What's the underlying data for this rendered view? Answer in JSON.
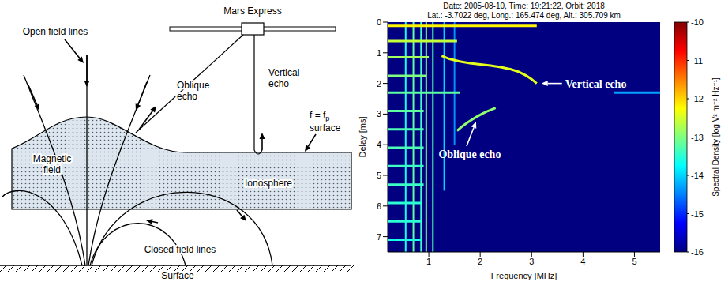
{
  "diagram": {
    "labels": {
      "spacecraft": "Mars Express",
      "open_field_lines": "Open field lines",
      "vertical_echo": "Vertical echo",
      "oblique_echo": "Oblique echo",
      "plasma_surface": {
        "text": "f = f",
        "subscript": "p",
        "suffix": "surface"
      },
      "magnetic_field": "Magnetic field",
      "ionosphere": "Ionosphere",
      "closed_field_lines": "Closed field lines",
      "surface": "Surface"
    }
  },
  "chart_data": {
    "type": "heatmap",
    "title": "Date: 2005-08-10, Time: 19:21:22, Orbit: 2018",
    "subtitle": "Lat.: -3.7022 deg, Long.: 165.474 deg, Alt.: 305.709 km",
    "x_label": "Frequency [MHz]",
    "y_label": "Delay [ms]",
    "xlim": [
      0.2,
      5.5
    ],
    "xticks": [
      1,
      2,
      3,
      4,
      5
    ],
    "ylim": [
      0,
      7.5
    ],
    "yticks": [
      0,
      1,
      2,
      3,
      4,
      5,
      6,
      7
    ],
    "colorbar": {
      "label": "Spectral Density [log V² m⁻² Hz⁻¹]",
      "range": [
        -16,
        -10
      ],
      "ticks": [
        -10,
        -11,
        -12,
        -13,
        -14,
        -15,
        -16
      ]
    },
    "background_value": -16,
    "horizontal_lines": [
      {
        "delay": 0.12,
        "from": 0.2,
        "to": 3.1,
        "value": -12.2
      },
      {
        "delay": 0.62,
        "from": 0.2,
        "to": 1.55,
        "value": -12.6
      },
      {
        "delay": 1.15,
        "from": 0.2,
        "to": 1.0,
        "value": -12.8
      },
      {
        "delay": 1.75,
        "from": 0.2,
        "to": 0.95,
        "value": -13.0
      },
      {
        "delay": 2.3,
        "from": 0.2,
        "to": 1.6,
        "value": -13.2
      },
      {
        "delay": 2.3,
        "from": 4.6,
        "to": 5.5,
        "value": -14.3
      },
      {
        "delay": 2.9,
        "from": 0.2,
        "to": 0.9,
        "value": -13.2
      },
      {
        "delay": 3.5,
        "from": 0.2,
        "to": 0.9,
        "value": -13.3
      },
      {
        "delay": 4.1,
        "from": 0.2,
        "to": 0.9,
        "value": -13.3
      },
      {
        "delay": 4.7,
        "from": 0.2,
        "to": 0.9,
        "value": -13.4
      },
      {
        "delay": 5.3,
        "from": 0.2,
        "to": 0.9,
        "value": -13.4
      },
      {
        "delay": 5.9,
        "from": 0.2,
        "to": 0.85,
        "value": -13.5
      },
      {
        "delay": 6.5,
        "from": 0.2,
        "to": 0.85,
        "value": -13.5
      },
      {
        "delay": 7.1,
        "from": 0.2,
        "to": 0.85,
        "value": -13.6
      }
    ],
    "vertical_lines": [
      {
        "freq": 0.55,
        "from": 0,
        "to": 7.5,
        "value": -13.6
      },
      {
        "freq": 0.7,
        "from": 0,
        "to": 7.5,
        "value": -13.2
      },
      {
        "freq": 0.85,
        "from": 0,
        "to": 7.5,
        "value": -13.4
      },
      {
        "freq": 0.95,
        "from": 0,
        "to": 7.5,
        "value": -13.0
      },
      {
        "freq": 1.08,
        "from": 0,
        "to": 7.5,
        "value": -13.3
      },
      {
        "freq": 1.3,
        "from": 0,
        "to": 5.5,
        "value": -14.0
      },
      {
        "freq": 1.5,
        "from": 0,
        "to": 4.0,
        "value": -14.4
      }
    ],
    "series": [
      {
        "name": "Vertical echo",
        "value": -12.4,
        "x": [
          1.25,
          1.4,
          1.6,
          1.8,
          2.0,
          2.2,
          2.4,
          2.6,
          2.75,
          2.9,
          3.0,
          3.1
        ],
        "y": [
          1.1,
          1.2,
          1.28,
          1.34,
          1.38,
          1.42,
          1.47,
          1.54,
          1.62,
          1.75,
          1.86,
          2.0
        ]
      },
      {
        "name": "Oblique echo",
        "value": -12.9,
        "x": [
          1.55,
          1.65,
          1.75,
          1.85,
          1.95,
          2.05,
          2.15,
          2.3
        ],
        "y": [
          3.55,
          3.4,
          3.28,
          3.17,
          3.07,
          2.98,
          2.9,
          2.8
        ]
      }
    ]
  }
}
